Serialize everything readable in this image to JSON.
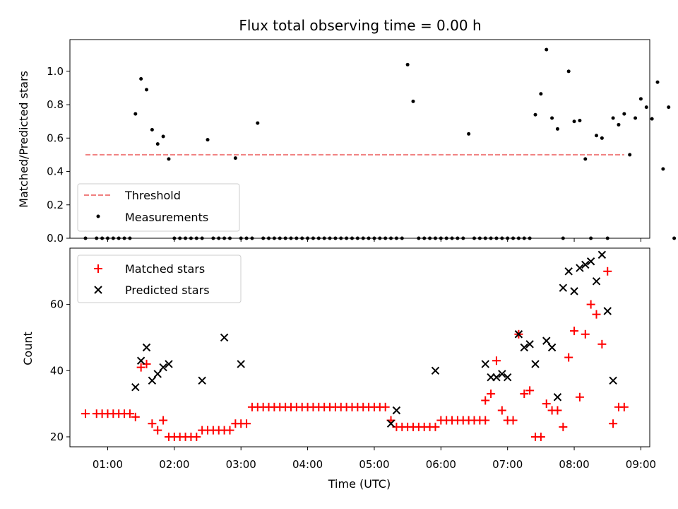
{
  "chart_data": [
    {
      "type": "scatter",
      "title": "Flux total observing time = 0.00 h",
      "xlabel": "",
      "ylabel": "Matched/Predicted stars",
      "xlim": [
        "00:26",
        "09:08"
      ],
      "ylim": [
        0,
        1.19
      ],
      "yticks": [
        0.0,
        0.2,
        0.4,
        0.6,
        0.8,
        1.0
      ],
      "ytick_labels": [
        "0.0",
        "0.2",
        "0.4",
        "0.6",
        "0.8",
        "1.0"
      ],
      "grid": false,
      "legend": {
        "position": "lower-left",
        "entries": [
          {
            "label": "Threshold",
            "style": "dashed-line",
            "color": "#f08080"
          },
          {
            "label": "Measurements",
            "style": "dot",
            "color": "#000000"
          }
        ]
      },
      "threshold": {
        "name": "Threshold",
        "y": 0.5,
        "x_start": "00:40",
        "x_end": "08:45",
        "color": "#f08080"
      },
      "series": [
        {
          "name": "Measurements",
          "color": "#000000",
          "marker": "dot",
          "points": [
            [
              "00:40",
              0
            ],
            [
              "00:50",
              0
            ],
            [
              "00:55",
              0
            ],
            [
              "01:00",
              0
            ],
            [
              "01:05",
              0
            ],
            [
              "01:10",
              0
            ],
            [
              "01:15",
              0
            ],
            [
              "01:20",
              0
            ],
            [
              "01:25",
              0.745
            ],
            [
              "01:30",
              0.955
            ],
            [
              "01:35",
              0.89
            ],
            [
              "01:40",
              0.65
            ],
            [
              "01:45",
              0.565
            ],
            [
              "01:50",
              0.61
            ],
            [
              "01:55",
              0.475
            ],
            [
              "02:00",
              0
            ],
            [
              "02:05",
              0
            ],
            [
              "02:10",
              0
            ],
            [
              "02:15",
              0
            ],
            [
              "02:20",
              0
            ],
            [
              "02:25",
              0
            ],
            [
              "02:30",
              0.59
            ],
            [
              "02:35",
              0
            ],
            [
              "02:40",
              0
            ],
            [
              "02:45",
              0
            ],
            [
              "02:50",
              0
            ],
            [
              "02:55",
              0.48
            ],
            [
              "03:00",
              0
            ],
            [
              "03:05",
              0
            ],
            [
              "03:10",
              0
            ],
            [
              "03:15",
              0.69
            ],
            [
              "03:20",
              0
            ],
            [
              "03:25",
              0
            ],
            [
              "03:30",
              0
            ],
            [
              "03:35",
              0
            ],
            [
              "03:40",
              0
            ],
            [
              "03:45",
              0
            ],
            [
              "03:50",
              0
            ],
            [
              "03:55",
              0
            ],
            [
              "04:00",
              0
            ],
            [
              "04:05",
              0
            ],
            [
              "04:10",
              0
            ],
            [
              "04:15",
              0
            ],
            [
              "04:20",
              0
            ],
            [
              "04:25",
              0
            ],
            [
              "04:30",
              0
            ],
            [
              "04:35",
              0
            ],
            [
              "04:40",
              0
            ],
            [
              "04:45",
              0
            ],
            [
              "04:50",
              0
            ],
            [
              "04:55",
              0
            ],
            [
              "05:00",
              0
            ],
            [
              "05:05",
              0
            ],
            [
              "05:10",
              0
            ],
            [
              "05:15",
              0
            ],
            [
              "05:20",
              0
            ],
            [
              "05:25",
              0
            ],
            [
              "05:30",
              1.04
            ],
            [
              "05:35",
              0.82
            ],
            [
              "05:40",
              0
            ],
            [
              "05:45",
              0
            ],
            [
              "05:50",
              0
            ],
            [
              "05:55",
              0
            ],
            [
              "06:00",
              0
            ],
            [
              "06:05",
              0
            ],
            [
              "06:10",
              0
            ],
            [
              "06:15",
              0
            ],
            [
              "06:20",
              0
            ],
            [
              "06:25",
              0.625
            ],
            [
              "06:30",
              0
            ],
            [
              "06:35",
              0
            ],
            [
              "06:40",
              0
            ],
            [
              "06:45",
              0
            ],
            [
              "06:50",
              0
            ],
            [
              "06:55",
              0
            ],
            [
              "07:00",
              0
            ],
            [
              "07:05",
              0
            ],
            [
              "07:10",
              0
            ],
            [
              "07:15",
              0
            ],
            [
              "07:20",
              0
            ],
            [
              "07:25",
              0.74
            ],
            [
              "07:30",
              0.865
            ],
            [
              "07:35",
              1.13
            ],
            [
              "07:40",
              0.72
            ],
            [
              "07:45",
              0.655
            ],
            [
              "07:50",
              0
            ],
            [
              "07:55",
              1.0
            ],
            [
              "08:00",
              0.7
            ],
            [
              "08:05",
              0.705
            ],
            [
              "08:10",
              0.475
            ],
            [
              "08:15",
              0
            ],
            [
              "08:20",
              0.615
            ],
            [
              "08:25",
              0.6
            ],
            [
              "08:30",
              0
            ],
            [
              "08:35",
              0.72
            ],
            [
              "08:40",
              0.68
            ],
            [
              "08:45",
              0.745
            ],
            [
              "08:50",
              0.5
            ],
            [
              "08:55",
              0.72
            ],
            [
              "09:00",
              0.835
            ],
            [
              "09:05",
              0.785
            ],
            [
              "09:10",
              0.715
            ],
            [
              "09:15",
              0.935
            ],
            [
              "09:20",
              0.415
            ],
            [
              "09:25",
              0.785
            ],
            [
              "09:30",
              0
            ]
          ]
        }
      ]
    },
    {
      "type": "scatter",
      "title": "",
      "xlabel": "Time (UTC)",
      "ylabel": "Count",
      "xlim": [
        "00:26",
        "09:08"
      ],
      "ylim": [
        17,
        77
      ],
      "xticks": [
        "01:00",
        "02:00",
        "03:00",
        "04:00",
        "05:00",
        "06:00",
        "07:00",
        "08:00",
        "09:00"
      ],
      "yticks": [
        20,
        40,
        60
      ],
      "ytick_labels": [
        "20",
        "40",
        "60"
      ],
      "grid": false,
      "legend": {
        "position": "upper-left",
        "entries": [
          {
            "label": "Matched stars",
            "style": "plus",
            "color": "#ff0000"
          },
          {
            "label": "Predicted stars",
            "style": "x",
            "color": "#000000"
          }
        ]
      },
      "series": [
        {
          "name": "Matched stars",
          "color": "#ff0000",
          "marker": "plus",
          "points": [
            [
              "00:40",
              27
            ],
            [
              "00:50",
              27
            ],
            [
              "00:55",
              27
            ],
            [
              "01:00",
              27
            ],
            [
              "01:05",
              27
            ],
            [
              "01:10",
              27
            ],
            [
              "01:15",
              27
            ],
            [
              "01:20",
              27
            ],
            [
              "01:25",
              26
            ],
            [
              "01:30",
              41
            ],
            [
              "01:35",
              42
            ],
            [
              "01:40",
              24
            ],
            [
              "01:45",
              22
            ],
            [
              "01:50",
              25
            ],
            [
              "01:55",
              20
            ],
            [
              "02:00",
              20
            ],
            [
              "02:05",
              20
            ],
            [
              "02:10",
              20
            ],
            [
              "02:15",
              20
            ],
            [
              "02:20",
              20
            ],
            [
              "02:25",
              22
            ],
            [
              "02:30",
              22
            ],
            [
              "02:35",
              22
            ],
            [
              "02:40",
              22
            ],
            [
              "02:45",
              22
            ],
            [
              "02:50",
              22
            ],
            [
              "02:55",
              24
            ],
            [
              "03:00",
              24
            ],
            [
              "03:05",
              24
            ],
            [
              "03:10",
              29
            ],
            [
              "03:15",
              29
            ],
            [
              "03:20",
              29
            ],
            [
              "03:25",
              29
            ],
            [
              "03:30",
              29
            ],
            [
              "03:35",
              29
            ],
            [
              "03:40",
              29
            ],
            [
              "03:45",
              29
            ],
            [
              "03:50",
              29
            ],
            [
              "03:55",
              29
            ],
            [
              "04:00",
              29
            ],
            [
              "04:05",
              29
            ],
            [
              "04:10",
              29
            ],
            [
              "04:15",
              29
            ],
            [
              "04:20",
              29
            ],
            [
              "04:25",
              29
            ],
            [
              "04:30",
              29
            ],
            [
              "04:35",
              29
            ],
            [
              "04:40",
              29
            ],
            [
              "04:45",
              29
            ],
            [
              "04:50",
              29
            ],
            [
              "04:55",
              29
            ],
            [
              "05:00",
              29
            ],
            [
              "05:05",
              29
            ],
            [
              "05:10",
              29
            ],
            [
              "05:15",
              25
            ],
            [
              "05:20",
              23
            ],
            [
              "05:25",
              23
            ],
            [
              "05:30",
              23
            ],
            [
              "05:35",
              23
            ],
            [
              "05:40",
              23
            ],
            [
              "05:45",
              23
            ],
            [
              "05:50",
              23
            ],
            [
              "05:55",
              23
            ],
            [
              "06:00",
              25
            ],
            [
              "06:05",
              25
            ],
            [
              "06:10",
              25
            ],
            [
              "06:15",
              25
            ],
            [
              "06:20",
              25
            ],
            [
              "06:25",
              25
            ],
            [
              "06:30",
              25
            ],
            [
              "06:35",
              25
            ],
            [
              "06:40",
              25
            ],
            [
              "06:40",
              31
            ],
            [
              "06:45",
              33
            ],
            [
              "06:50",
              43
            ],
            [
              "06:55",
              28
            ],
            [
              "07:00",
              25
            ],
            [
              "07:05",
              25
            ],
            [
              "07:10",
              51
            ],
            [
              "07:15",
              33
            ],
            [
              "07:20",
              34
            ],
            [
              "07:25",
              20
            ],
            [
              "07:30",
              20
            ],
            [
              "07:35",
              30
            ],
            [
              "07:40",
              28
            ],
            [
              "07:45",
              28
            ],
            [
              "07:50",
              23
            ],
            [
              "07:55",
              44
            ],
            [
              "08:00",
              52
            ],
            [
              "08:05",
              32
            ],
            [
              "08:10",
              51
            ],
            [
              "08:15",
              60
            ],
            [
              "08:20",
              57
            ],
            [
              "08:25",
              48
            ],
            [
              "08:30",
              70
            ],
            [
              "08:35",
              24
            ],
            [
              "08:40",
              29
            ],
            [
              "08:45",
              29
            ]
          ]
        },
        {
          "name": "Predicted stars",
          "color": "#000000",
          "marker": "x",
          "points": [
            [
              "01:25",
              35
            ],
            [
              "01:30",
              43
            ],
            [
              "01:35",
              47
            ],
            [
              "01:40",
              37
            ],
            [
              "01:45",
              39
            ],
            [
              "01:50",
              41
            ],
            [
              "01:55",
              42
            ],
            [
              "02:25",
              37
            ],
            [
              "02:45",
              50
            ],
            [
              "03:00",
              42
            ],
            [
              "05:15",
              24
            ],
            [
              "05:20",
              28
            ],
            [
              "05:55",
              40
            ],
            [
              "06:40",
              42
            ],
            [
              "06:45",
              38
            ],
            [
              "06:50",
              38
            ],
            [
              "06:55",
              39
            ],
            [
              "07:00",
              38
            ],
            [
              "07:10",
              51
            ],
            [
              "07:15",
              47
            ],
            [
              "07:20",
              48
            ],
            [
              "07:25",
              42
            ],
            [
              "07:35",
              49
            ],
            [
              "07:40",
              47
            ],
            [
              "07:45",
              32
            ],
            [
              "07:50",
              65
            ],
            [
              "07:55",
              70
            ],
            [
              "08:00",
              64
            ],
            [
              "08:05",
              71
            ],
            [
              "08:10",
              72
            ],
            [
              "08:15",
              73
            ],
            [
              "08:20",
              67
            ],
            [
              "08:25",
              75
            ],
            [
              "08:30",
              58
            ],
            [
              "08:35",
              37
            ]
          ]
        }
      ]
    }
  ]
}
